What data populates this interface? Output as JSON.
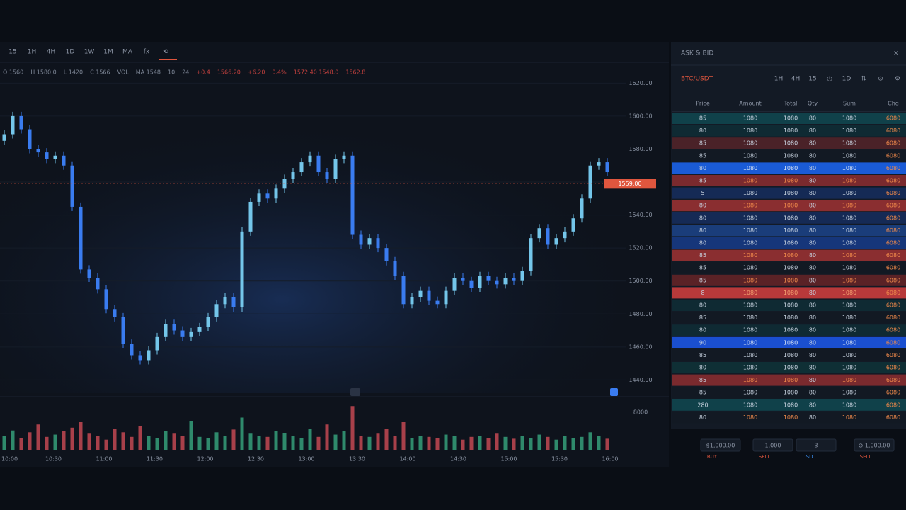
{
  "toolbar": [
    "15",
    "1H",
    "4H",
    "1D",
    "1W",
    "1M",
    "MA",
    "fx",
    "⟲"
  ],
  "indicators": [
    {
      "text": "O 1560",
      "color": "#7d8696"
    },
    {
      "text": "H 1580.0",
      "color": "#7d8696"
    },
    {
      "text": "L 1420",
      "color": "#7d8696"
    },
    {
      "text": "C 1566",
      "color": "#7d8696"
    },
    {
      "text": "VOL",
      "color": "#7d8696"
    },
    {
      "text": "MA 1548",
      "color": "#7d8696"
    },
    {
      "text": "10",
      "color": "#7d8696"
    },
    {
      "text": "24",
      "color": "#7d8696"
    },
    {
      "text": "+0.4",
      "color": "#c2413e"
    },
    {
      "text": "1566.20",
      "color": "#c2413e"
    },
    {
      "text": "+6.20",
      "color": "#c2413e"
    },
    {
      "text": "0.4%",
      "color": "#c2413e"
    },
    {
      "text": "1572.40 1548.0",
      "color": "#c2413e"
    },
    {
      "text": "1562.8",
      "color": "#c2413e"
    }
  ],
  "chart_data": {
    "type": "candlestick",
    "open": 1585,
    "series": [
      {
        "name": "Price",
        "up_color": "#74c6ea",
        "down_color": "#3a7cf0",
        "values": [
          1589,
          1600,
          1592,
          1580,
          1578,
          1574,
          1576,
          1570,
          1545,
          1507,
          1502,
          1495,
          1483,
          1478,
          1462,
          1455,
          1452,
          1458,
          1466,
          1474,
          1470,
          1466,
          1469,
          1472,
          1478,
          1486,
          1490,
          1484,
          1530,
          1548,
          1553,
          1550,
          1556,
          1562,
          1566,
          1572,
          1576,
          1566,
          1562,
          1574,
          1576,
          1528,
          1522,
          1526,
          1520,
          1512,
          1503,
          1486,
          1490,
          1494,
          1488,
          1486,
          1494,
          1502,
          1500,
          1496,
          1503,
          1500,
          1498,
          1502,
          1500,
          1506,
          1526,
          1532,
          1522,
          1526,
          1530,
          1538,
          1550,
          1570,
          1572,
          1566
        ]
      }
    ],
    "volume": {
      "up_color": "#2f8a6c",
      "down_color": "#a8404a",
      "values": [
        30,
        42,
        25,
        38,
        55,
        28,
        33,
        40,
        48,
        60,
        35,
        30,
        22,
        45,
        38,
        28,
        52,
        30,
        26,
        40,
        35,
        30,
        62,
        28,
        25,
        38,
        30,
        44,
        70,
        35,
        30,
        28,
        40,
        36,
        30,
        25,
        45,
        28,
        55,
        33,
        40,
        95,
        30,
        28,
        35,
        45,
        30,
        60,
        26,
        30,
        28,
        25,
        33,
        30,
        22,
        28,
        30,
        25,
        35,
        28,
        24,
        30,
        26,
        33,
        28,
        22,
        30,
        26,
        28,
        38,
        30,
        24
      ]
    },
    "ylim": [
      1432,
      1621
    ],
    "vlim": [
      0,
      100
    ],
    "yticks": [
      {
        "value": 1620,
        "label": "1620.00"
      },
      {
        "value": 1600,
        "label": "1600.00"
      },
      {
        "value": 1580,
        "label": "1580.00"
      },
      {
        "value": 1560,
        "label": "1560.00"
      },
      {
        "value": 1540,
        "label": "1540.00"
      },
      {
        "value": 1520,
        "label": "1520.00"
      },
      {
        "value": 1500,
        "label": "1500.00"
      },
      {
        "value": 1480,
        "label": "1480.00"
      },
      {
        "value": 1460,
        "label": "1460.00"
      },
      {
        "value": 1440,
        "label": "1440.00"
      }
    ],
    "volume_label": "8000",
    "current_price": {
      "value": 1559,
      "label": "1559.00"
    },
    "x_labels": [
      "10:00",
      "10:30",
      "11:00",
      "11:30",
      "12:00",
      "12:30",
      "13:00",
      "13:30",
      "14:00",
      "14:30",
      "15:00",
      "15:30",
      "16:00"
    ]
  },
  "order_book": {
    "title": "ASK & BID",
    "close": "×",
    "pair": "BTC/USDT",
    "icons": [
      "1H",
      "4H",
      "15",
      "◷",
      "1D",
      "⇅",
      "⊙",
      "⚙"
    ],
    "columns": [
      "Price",
      "Amount",
      "Total",
      "Qty",
      "Sum",
      "Chg"
    ],
    "rows": [
      {
        "color": "#10414a",
        "text": "#c8d3e0",
        "cells": [
          "85",
          "1080",
          "1080",
          "80",
          "1080",
          "6080"
        ]
      },
      {
        "color": "#0f2a33",
        "text": "#c8d3e0",
        "cells": [
          "80",
          "1080",
          "1080",
          "80",
          "1080",
          "6080"
        ]
      },
      {
        "color": "#4a2228",
        "text": "#c8d3e0",
        "cells": [
          "85",
          "1080",
          "1080",
          "80",
          "1080",
          "6080"
        ]
      },
      {
        "color": "#121923",
        "text": "#c8d3e0",
        "cells": [
          "85",
          "1080",
          "1080",
          "80",
          "1080",
          "6080"
        ]
      },
      {
        "color": "#1a5bd6",
        "text": "#dbe6f5",
        "cells": [
          "80",
          "1080",
          "1080",
          "80",
          "1080",
          "6080"
        ]
      },
      {
        "color": "#7a2a2e",
        "text": "#f08a4b",
        "cells": [
          "85",
          "1080",
          "1080",
          "80",
          "1080",
          "6080"
        ]
      },
      {
        "color": "#152a55",
        "text": "#c8d3e0",
        "cells": [
          "5",
          "1080",
          "1080",
          "80",
          "1080",
          "6080"
        ]
      },
      {
        "color": "#8a2e30",
        "text": "#f08a4b",
        "cells": [
          "80",
          "1080",
          "1080",
          "80",
          "1080",
          "6080"
        ]
      },
      {
        "color": "#152a55",
        "text": "#c8d3e0",
        "cells": [
          "80",
          "1080",
          "1080",
          "80",
          "1080",
          "6080"
        ]
      },
      {
        "color": "#1a3d7a",
        "text": "#c8d3e0",
        "cells": [
          "80",
          "1080",
          "1080",
          "80",
          "1080",
          "6080"
        ]
      },
      {
        "color": "#16367a",
        "text": "#c8d3e0",
        "cells": [
          "80",
          "1080",
          "1080",
          "80",
          "1080",
          "6080"
        ]
      },
      {
        "color": "#8a2e30",
        "text": "#f08a4b",
        "cells": [
          "85",
          "1080",
          "1080",
          "80",
          "1080",
          "6080"
        ]
      },
      {
        "color": "#121923",
        "text": "#c8d3e0",
        "cells": [
          "85",
          "1080",
          "1080",
          "80",
          "1080",
          "6080"
        ]
      },
      {
        "color": "#5a2226",
        "text": "#f08a4b",
        "cells": [
          "85",
          "1080",
          "1080",
          "80",
          "1080",
          "6080"
        ]
      },
      {
        "color": "#b8393a",
        "text": "#f4a070",
        "cells": [
          "8",
          "1080",
          "1080",
          "80",
          "1080",
          "6080"
        ]
      },
      {
        "color": "#0f2a33",
        "text": "#c8d3e0",
        "cells": [
          "80",
          "1080",
          "1080",
          "80",
          "1080",
          "6080"
        ]
      },
      {
        "color": "#121923",
        "text": "#c8d3e0",
        "cells": [
          "85",
          "1080",
          "1080",
          "80",
          "1080",
          "6080"
        ]
      },
      {
        "color": "#0f2a33",
        "text": "#c8d3e0",
        "cells": [
          "80",
          "1080",
          "1080",
          "80",
          "1080",
          "6080"
        ]
      },
      {
        "color": "#1a4fd0",
        "text": "#dbe6f5",
        "cells": [
          "90",
          "1080",
          "1080",
          "80",
          "1080",
          "6080"
        ]
      },
      {
        "color": "#121923",
        "text": "#c8d3e0",
        "cells": [
          "85",
          "1080",
          "1080",
          "80",
          "1080",
          "6080"
        ]
      },
      {
        "color": "#0f2f35",
        "text": "#c8d3e0",
        "cells": [
          "80",
          "1080",
          "1080",
          "80",
          "1080",
          "6080"
        ]
      },
      {
        "color": "#7a2a2e",
        "text": "#f08a4b",
        "cells": [
          "85",
          "1080",
          "1080",
          "80",
          "1080",
          "6080"
        ]
      },
      {
        "color": "#121923",
        "text": "#c8d3e0",
        "cells": [
          "85",
          "1080",
          "1080",
          "80",
          "1080",
          "6080"
        ]
      },
      {
        "color": "#10414a",
        "text": "#c8d3e0",
        "cells": [
          "280",
          "1080",
          "1080",
          "80",
          "1080",
          "6080"
        ]
      },
      {
        "color": "#121923",
        "text": "#f08a4b",
        "cells": [
          "80",
          "1080",
          "1080",
          "80",
          "1080",
          "6080"
        ]
      }
    ]
  },
  "footer": [
    {
      "value": "$1,000.00",
      "sub": "BUY",
      "color": "#e0563e"
    },
    {
      "value": "1,000",
      "sub": "SELL",
      "color": "#e0563e"
    },
    {
      "value": "3",
      "sub": "USD",
      "color": "#3a8ef0"
    },
    {
      "value": "⊘ 1,000.00",
      "sub": "SELL",
      "color": "#e0563e"
    }
  ]
}
